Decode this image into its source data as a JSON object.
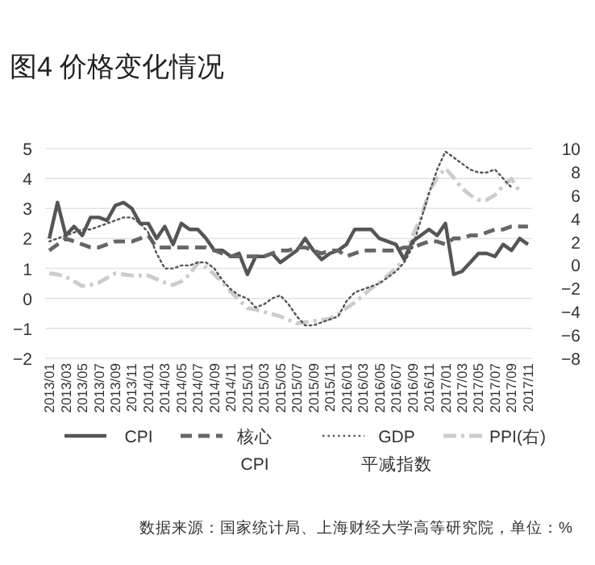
{
  "chart_data": {
    "type": "line",
    "title": "图4  价格变化情况",
    "categories": [
      "2013/01",
      null,
      "2013/03",
      null,
      "2013/05",
      null,
      "2013/07",
      null,
      "2013/09",
      null,
      "2013/11",
      null,
      "2014/01",
      null,
      "2014/03",
      null,
      "2014/05",
      null,
      "2014/07",
      null,
      "2014/09",
      null,
      "2014/11",
      null,
      "2015/01",
      null,
      "2015/03",
      null,
      "2015/05",
      null,
      "2015/07",
      null,
      "2015/09",
      null,
      "2015/11",
      null,
      "2016/01",
      null,
      "2016/03",
      null,
      "2016/05",
      null,
      "2016/07",
      null,
      "2016/09",
      null,
      "2016/11",
      null,
      "2017/01",
      null,
      "2017/03",
      null,
      "2017/05",
      null,
      "2017/07",
      null,
      "2017/09",
      null,
      "2017/11"
    ],
    "series": [
      {
        "name": "CPI",
        "color": "#555555",
        "line_style": "solid",
        "values": [
          2.0,
          3.2,
          2.1,
          2.4,
          2.1,
          2.7,
          2.7,
          2.6,
          3.1,
          3.2,
          3.0,
          2.5,
          2.5,
          2.0,
          2.4,
          1.8,
          2.5,
          2.3,
          2.3,
          2.0,
          1.6,
          1.6,
          1.4,
          1.5,
          0.8,
          1.4,
          1.4,
          1.5,
          1.2,
          1.4,
          1.6,
          2.0,
          1.6,
          1.3,
          1.5,
          1.6,
          1.8,
          2.3,
          2.3,
          2.3,
          2.0,
          1.9,
          1.8,
          1.3,
          1.9,
          2.1,
          2.3,
          2.1,
          2.5,
          0.8,
          0.9,
          1.2,
          1.5,
          1.5,
          1.4,
          1.8,
          1.6,
          2.0,
          1.8
        ]
      },
      {
        "name": "核心\nCPI",
        "color": "#666666",
        "line_style": "dashed",
        "values": [
          1.6,
          1.8,
          2.0,
          1.9,
          1.8,
          1.7,
          1.7,
          1.8,
          1.9,
          1.9,
          1.9,
          2.0,
          2.1,
          1.7,
          1.7,
          1.7,
          1.7,
          1.7,
          1.7,
          1.7,
          1.6,
          1.5,
          1.4,
          1.4,
          1.4,
          1.4,
          1.4,
          1.5,
          1.6,
          1.6,
          1.7,
          1.7,
          1.6,
          1.5,
          1.6,
          1.6,
          1.4,
          1.5,
          1.6,
          1.6,
          1.6,
          1.6,
          1.6,
          1.7,
          1.7,
          1.8,
          1.9,
          1.9,
          1.8,
          2.0,
          2.0,
          2.1,
          2.1,
          2.2,
          2.3,
          2.3,
          2.4,
          2.4,
          2.4
        ]
      },
      {
        "name": "GDP\n平减指数",
        "color": "#555555",
        "line_style": "dotted",
        "values": [
          1.9,
          2.0,
          2.1,
          2.2,
          2.3,
          2.3,
          2.4,
          2.5,
          2.6,
          2.7,
          2.7,
          2.5,
          2.2,
          1.5,
          1.0,
          1.0,
          1.1,
          1.1,
          1.2,
          1.2,
          1.0,
          0.6,
          0.3,
          0.1,
          0.0,
          -0.3,
          -0.2,
          0.0,
          0.1,
          -0.2,
          -0.6,
          -0.9,
          -0.9,
          -0.8,
          -0.7,
          -0.6,
          -0.1,
          0.2,
          0.3,
          0.4,
          0.5,
          0.7,
          0.9,
          1.2,
          1.7,
          2.6,
          3.5,
          4.3,
          4.9,
          4.7,
          4.5,
          4.3,
          4.2,
          4.2,
          4.3,
          4.0,
          3.7,
          null,
          null
        ]
      },
      {
        "name": "PPI(右)",
        "color": "#cccccc",
        "line_style": "dashdot",
        "axis": "y2",
        "values": [
          -0.7,
          -0.8,
          -1.0,
          -1.4,
          -1.8,
          -1.7,
          -1.5,
          -1.1,
          -0.7,
          -0.8,
          -0.9,
          -0.9,
          -0.9,
          -1.2,
          -1.5,
          -1.7,
          -1.4,
          -0.8,
          0.2,
          -0.2,
          -0.8,
          -1.5,
          -2.3,
          -3.0,
          -3.7,
          -3.8,
          -4.0,
          -4.2,
          -4.4,
          -4.7,
          -5.0,
          -4.9,
          -4.8,
          -4.7,
          -4.6,
          -4.2,
          -3.7,
          -3.2,
          -2.6,
          -2.0,
          -1.5,
          -0.9,
          -0.3,
          0.5,
          2.5,
          4.0,
          6.2,
          7.5,
          8.3,
          7.5,
          6.6,
          6.0,
          5.6,
          5.6,
          6.0,
          6.8,
          7.4,
          6.3,
          null
        ]
      }
    ],
    "ylim": [
      -2,
      5
    ],
    "yticks": [
      -2,
      -1,
      0,
      1,
      2,
      3,
      4,
      5
    ],
    "y2lim": [
      -8,
      10
    ],
    "y2ticks": [
      -8,
      -6,
      -4,
      -2,
      0,
      2,
      4,
      6,
      8,
      10
    ],
    "grid": "y",
    "legend": "bottom",
    "marker": "none",
    "annotations": [
      "数据来源：国家统计局、上海财经大学高等研究院，单位：%"
    ]
  }
}
